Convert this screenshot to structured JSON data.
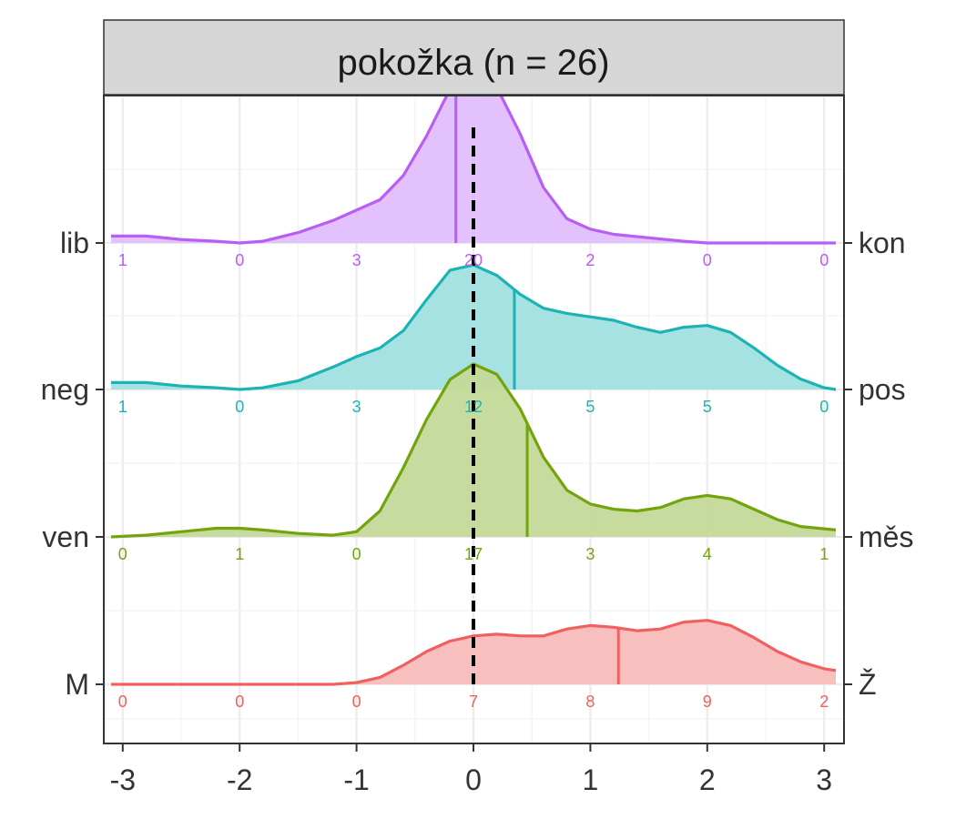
{
  "chart_data": {
    "type": "ridgeline-density",
    "facet_title": "pokožka (n = 26)",
    "x_ticks": [
      -3,
      -2,
      -1,
      0,
      1,
      2,
      3
    ],
    "xlim": [
      -3.1,
      3.1
    ],
    "reference_line_x": 0,
    "grid": true,
    "rows": [
      {
        "left_label": "M",
        "right_label": "Ž",
        "color": "#F0605E",
        "fill": "#F8BCBC",
        "median": 1.24,
        "counts": [
          {
            "x": -3,
            "n": "0"
          },
          {
            "x": -2,
            "n": "0"
          },
          {
            "x": -1,
            "n": "0"
          },
          {
            "x": 0,
            "n": "7"
          },
          {
            "x": 1,
            "n": "8"
          },
          {
            "x": 2,
            "n": "9"
          },
          {
            "x": 3,
            "n": "2"
          }
        ],
        "density": [
          [
            -3.1,
            0.0
          ],
          [
            -2.0,
            0.0
          ],
          [
            -1.2,
            0.0
          ],
          [
            -1.0,
            0.01
          ],
          [
            -0.8,
            0.04
          ],
          [
            -0.6,
            0.11
          ],
          [
            -0.4,
            0.19
          ],
          [
            -0.2,
            0.25
          ],
          [
            0.0,
            0.28
          ],
          [
            0.2,
            0.29
          ],
          [
            0.4,
            0.28
          ],
          [
            0.6,
            0.28
          ],
          [
            0.8,
            0.32
          ],
          [
            1.0,
            0.34
          ],
          [
            1.2,
            0.33
          ],
          [
            1.4,
            0.31
          ],
          [
            1.6,
            0.32
          ],
          [
            1.8,
            0.36
          ],
          [
            2.0,
            0.37
          ],
          [
            2.2,
            0.34
          ],
          [
            2.4,
            0.27
          ],
          [
            2.6,
            0.19
          ],
          [
            2.8,
            0.13
          ],
          [
            3.0,
            0.09
          ],
          [
            3.1,
            0.08
          ]
        ]
      },
      {
        "left_label": "ven",
        "right_label": "měs",
        "color": "#73A40E",
        "fill": "#C3D998",
        "median": 0.46,
        "counts": [
          {
            "x": -3,
            "n": "0"
          },
          {
            "x": -2,
            "n": "1"
          },
          {
            "x": -1,
            "n": "0"
          },
          {
            "x": 0,
            "n": "17"
          },
          {
            "x": 1,
            "n": "3"
          },
          {
            "x": 2,
            "n": "4"
          },
          {
            "x": 3,
            "n": "1"
          }
        ],
        "density": [
          [
            -3.1,
            0.0
          ],
          [
            -2.8,
            0.01
          ],
          [
            -2.5,
            0.03
          ],
          [
            -2.2,
            0.05
          ],
          [
            -2.0,
            0.05
          ],
          [
            -1.8,
            0.04
          ],
          [
            -1.5,
            0.02
          ],
          [
            -1.2,
            0.01
          ],
          [
            -1.0,
            0.03
          ],
          [
            -0.8,
            0.15
          ],
          [
            -0.6,
            0.4
          ],
          [
            -0.4,
            0.68
          ],
          [
            -0.2,
            0.91
          ],
          [
            0.0,
            1.0
          ],
          [
            0.2,
            0.94
          ],
          [
            0.4,
            0.74
          ],
          [
            0.6,
            0.46
          ],
          [
            0.8,
            0.27
          ],
          [
            1.0,
            0.19
          ],
          [
            1.2,
            0.16
          ],
          [
            1.4,
            0.15
          ],
          [
            1.6,
            0.17
          ],
          [
            1.8,
            0.22
          ],
          [
            2.0,
            0.24
          ],
          [
            2.2,
            0.22
          ],
          [
            2.4,
            0.16
          ],
          [
            2.6,
            0.1
          ],
          [
            2.8,
            0.06
          ],
          [
            3.1,
            0.04
          ]
        ]
      },
      {
        "left_label": "neg",
        "right_label": "pos",
        "color": "#1CB3B5",
        "fill": "#A2E0E0",
        "median": 0.35,
        "counts": [
          {
            "x": -3,
            "n": "1"
          },
          {
            "x": -2,
            "n": "0"
          },
          {
            "x": -1,
            "n": "3"
          },
          {
            "x": 0,
            "n": "12"
          },
          {
            "x": 1,
            "n": "5"
          },
          {
            "x": 2,
            "n": "5"
          },
          {
            "x": 3,
            "n": "0"
          }
        ],
        "density": [
          [
            -3.1,
            0.04
          ],
          [
            -2.8,
            0.04
          ],
          [
            -2.5,
            0.02
          ],
          [
            -2.2,
            0.01
          ],
          [
            -2.0,
            0.0
          ],
          [
            -1.8,
            0.01
          ],
          [
            -1.5,
            0.05
          ],
          [
            -1.2,
            0.13
          ],
          [
            -1.0,
            0.19
          ],
          [
            -0.8,
            0.24
          ],
          [
            -0.6,
            0.34
          ],
          [
            -0.4,
            0.52
          ],
          [
            -0.2,
            0.69
          ],
          [
            0.0,
            0.72
          ],
          [
            0.2,
            0.66
          ],
          [
            0.4,
            0.55
          ],
          [
            0.6,
            0.47
          ],
          [
            0.8,
            0.44
          ],
          [
            1.0,
            0.42
          ],
          [
            1.2,
            0.4
          ],
          [
            1.4,
            0.36
          ],
          [
            1.6,
            0.33
          ],
          [
            1.8,
            0.36
          ],
          [
            2.0,
            0.37
          ],
          [
            2.2,
            0.33
          ],
          [
            2.4,
            0.24
          ],
          [
            2.6,
            0.14
          ],
          [
            2.8,
            0.06
          ],
          [
            3.0,
            0.01
          ],
          [
            3.1,
            0.0
          ]
        ]
      },
      {
        "left_label": "lib",
        "right_label": "kon",
        "color": "#B85DF6",
        "fill": "#E2BEFC",
        "median": -0.15,
        "counts": [
          {
            "x": -3,
            "n": "1"
          },
          {
            "x": -2,
            "n": "0"
          },
          {
            "x": -1,
            "n": "3"
          },
          {
            "x": 0,
            "n": "20"
          },
          {
            "x": 1,
            "n": "2"
          },
          {
            "x": 2,
            "n": "0"
          },
          {
            "x": 3,
            "n": "0"
          }
        ],
        "density": [
          [
            -3.1,
            0.04
          ],
          [
            -2.8,
            0.04
          ],
          [
            -2.5,
            0.02
          ],
          [
            -2.2,
            0.01
          ],
          [
            -2.0,
            0.0
          ],
          [
            -1.8,
            0.01
          ],
          [
            -1.5,
            0.06
          ],
          [
            -1.2,
            0.13
          ],
          [
            -1.0,
            0.19
          ],
          [
            -0.8,
            0.25
          ],
          [
            -0.6,
            0.39
          ],
          [
            -0.4,
            0.62
          ],
          [
            -0.2,
            0.89
          ],
          [
            0.0,
            1.0
          ],
          [
            0.2,
            0.9
          ],
          [
            0.4,
            0.63
          ],
          [
            0.6,
            0.32
          ],
          [
            0.8,
            0.14
          ],
          [
            1.0,
            0.08
          ],
          [
            1.2,
            0.05
          ],
          [
            1.5,
            0.03
          ],
          [
            1.8,
            0.01
          ],
          [
            2.0,
            0.0
          ],
          [
            3.1,
            0.0
          ]
        ]
      }
    ]
  }
}
